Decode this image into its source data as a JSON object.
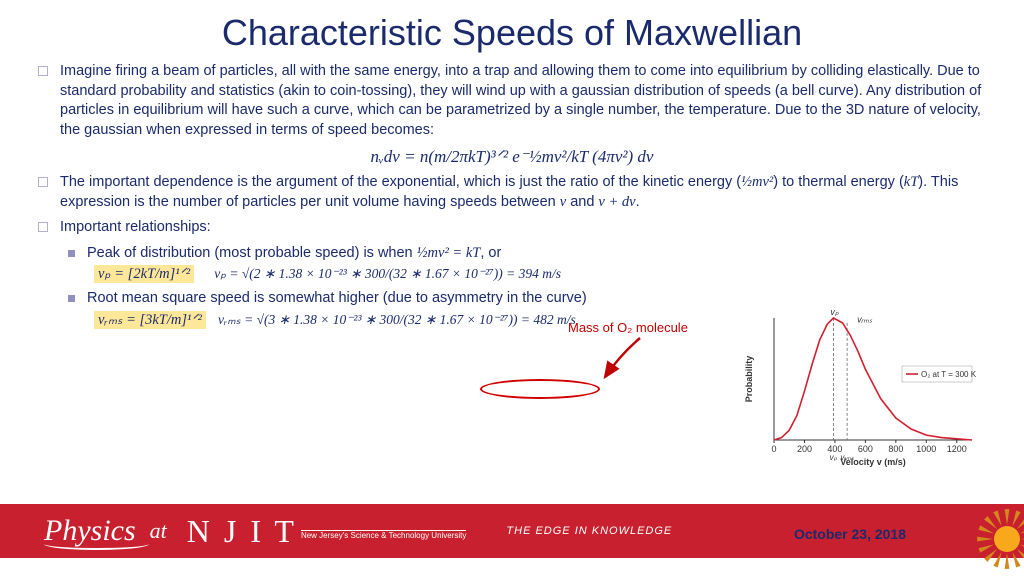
{
  "title": "Characteristic Speeds of Maxwellian",
  "bullets": {
    "b1": "Imagine firing a beam of particles, all with the same energy, into a trap and allowing them to come into equilibrium by colliding elastically.  Due to standard probability and statistics (akin to coin-tossing), they will wind up with a gaussian distribution of speeds (a bell curve).  Any distribution of particles in equilibrium will have such a curve, which can be parametrized by a single number, the temperature.  Due to the 3D nature of velocity, the gaussian when expressed in terms of speed becomes:",
    "b2a": "The important dependence is the argument of the exponential, which is just the ratio of the kinetic energy (",
    "b2b": ") to thermal energy (",
    "b2c": ").  This expression is the number of particles per unit volume having speeds between ",
    "b2d": " and ",
    "b2e": ".",
    "b3": "Important relationships:",
    "s1a": "Peak of distribution (most probable speed) is when ",
    "s1b": ", or",
    "s2": "Root mean square speed is somewhat higher (due to asymmetry in the curve)"
  },
  "math": {
    "main_formula": "nᵥdv = n(m/2πkT)³ᐟ² e⁻½mv²/kT (4πv²)  dv",
    "half_mv2": "½mv²",
    "kT": "kT",
    "v": "v",
    "v_plus_dv": "v + dv",
    "half_mv2_eq_kT": "½mv² = kT",
    "vp_box": "vₚ = [2kT/m]¹ᐟ²",
    "vp_calc": "vₚ = √(2 ∗ 1.38 × 10⁻²³ ∗ 300/(32 ∗ 1.67 × 10⁻²⁷)) = 394 m/s",
    "vrms_box": "vᵣₘₛ = [3kT/m]¹ᐟ²",
    "vrms_calc": "vᵣₘₛ = √(3 ∗ 1.38 × 10⁻²³ ∗ 300/(32 ∗ 1.67 × 10⁻²⁷)) = 482 m/s"
  },
  "annotation": {
    "mass_label": "Mass of O₂ molecule"
  },
  "chart": {
    "type": "line",
    "title": "",
    "xlabel": "Velocity v (m/s)",
    "ylabel": "Probability",
    "xlim": [
      0,
      1300
    ],
    "xticks": [
      0,
      200,
      400,
      600,
      800,
      1000,
      1200
    ],
    "legend_label": "O₂ at T = 300 K",
    "curve_color": "#d02030",
    "axis_color": "#333333",
    "dash_color": "#666666",
    "background_color": "#ffffff",
    "label_fontsize": 9,
    "markers": {
      "vp": {
        "x": 390,
        "label": "vₚ"
      },
      "vrms": {
        "x": 480,
        "label": "vᵣₘₛ"
      }
    },
    "points": [
      {
        "x": 0,
        "y": 0
      },
      {
        "x": 50,
        "y": 0.02
      },
      {
        "x": 100,
        "y": 0.08
      },
      {
        "x": 150,
        "y": 0.2
      },
      {
        "x": 200,
        "y": 0.4
      },
      {
        "x": 250,
        "y": 0.62
      },
      {
        "x": 300,
        "y": 0.82
      },
      {
        "x": 350,
        "y": 0.95
      },
      {
        "x": 390,
        "y": 1.0
      },
      {
        "x": 450,
        "y": 0.96
      },
      {
        "x": 500,
        "y": 0.86
      },
      {
        "x": 550,
        "y": 0.73
      },
      {
        "x": 600,
        "y": 0.58
      },
      {
        "x": 700,
        "y": 0.34
      },
      {
        "x": 800,
        "y": 0.18
      },
      {
        "x": 900,
        "y": 0.09
      },
      {
        "x": 1000,
        "y": 0.04
      },
      {
        "x": 1100,
        "y": 0.02
      },
      {
        "x": 1200,
        "y": 0.01
      },
      {
        "x": 1300,
        "y": 0.0
      }
    ]
  },
  "footer": {
    "physics": "Physics",
    "at": "at",
    "njit": "N J I T",
    "sub": "New Jersey's Science & Technology University",
    "edge": "THE EDGE IN KNOWLEDGE",
    "date": "October 23, 2018"
  },
  "colors": {
    "title": "#1a2a6c",
    "body": "#1a2a6c",
    "highlight_bg": "#ffe79a",
    "footer_bg": "#c8202e",
    "annotation": "#c00000"
  }
}
